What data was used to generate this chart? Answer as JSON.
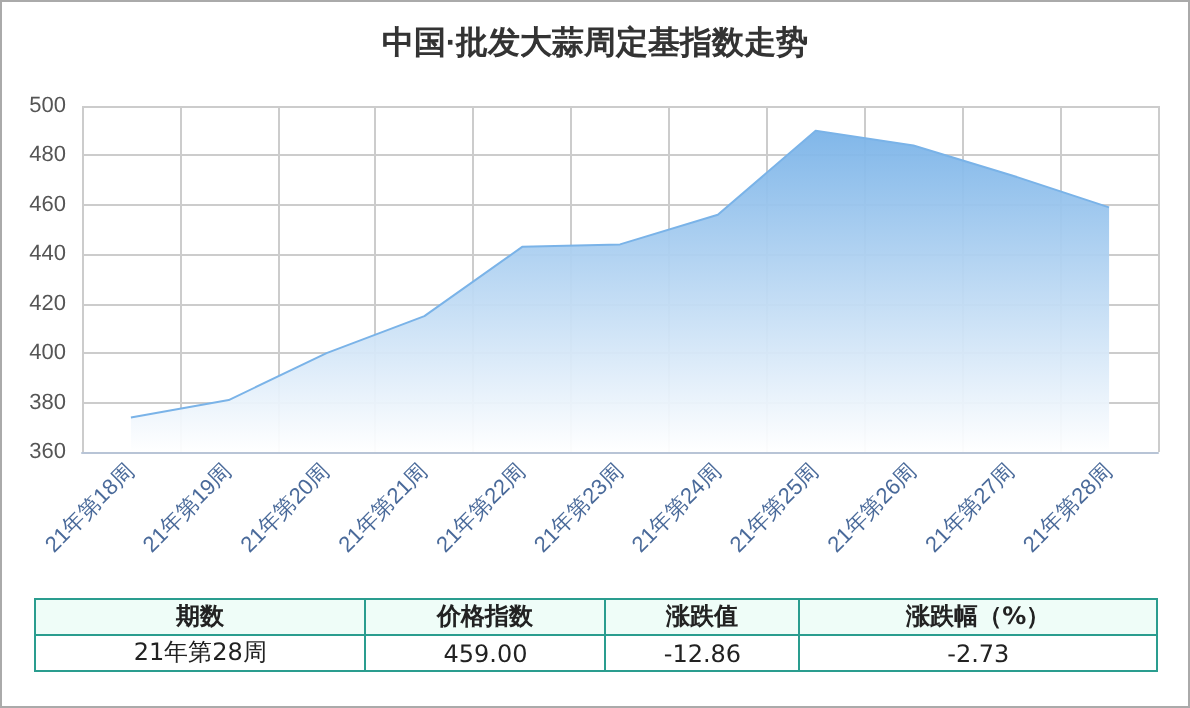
{
  "chart_data": {
    "type": "area",
    "title": "中国·批发大蒜周定基指数走势",
    "categories": [
      "21年第18周",
      "21年第19周",
      "21年第20周",
      "21年第21周",
      "21年第22周",
      "21年第23周",
      "21年第24周",
      "21年第25周",
      "21年第26周",
      "21年第27周",
      "21年第28周"
    ],
    "series": [
      {
        "color": "#7ab3e8",
        "values": [
          374,
          381,
          400,
          415,
          443,
          444,
          456,
          490,
          484,
          472,
          459
        ]
      }
    ],
    "ylim": [
      360,
      500
    ],
    "yticks": [
      360,
      380,
      400,
      420,
      440,
      460,
      480,
      500
    ],
    "grid": true,
    "marker": "none",
    "annotations": [
      "期数",
      "价格指数",
      "涨跌值",
      "涨跌幅（%）",
      "21年第28周",
      "459.00",
      "-12.86",
      "-2.73"
    ]
  }
}
